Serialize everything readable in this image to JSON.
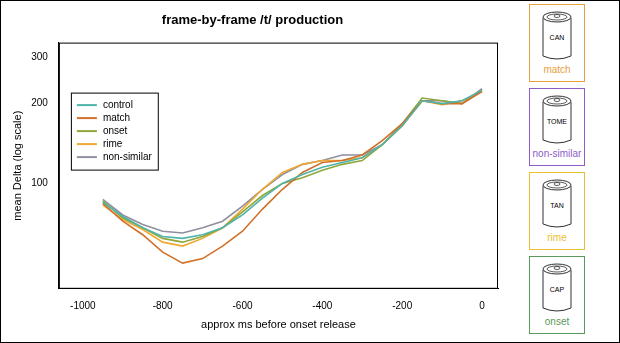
{
  "chart_data": {
    "type": "line",
    "title": "frame-by-frame /t/ production",
    "x_label": "approx ms before onset release",
    "y_label": "mean Delta (log scale)",
    "x": [
      -950,
      -900,
      -850,
      -800,
      -750,
      -700,
      -650,
      -600,
      -550,
      -500,
      -450,
      -400,
      -350,
      -300,
      -250,
      -200,
      -150,
      -100,
      -50,
      0
    ],
    "series": [
      {
        "name": "control",
        "color": "#4fb3aa",
        "values": [
          85,
          75,
          68,
          63,
          62,
          64,
          68,
          76,
          88,
          100,
          108,
          115,
          120,
          125,
          140,
          165,
          205,
          200,
          205,
          225
        ]
      },
      {
        "name": "match",
        "color": "#d0702a",
        "values": [
          84,
          72,
          64,
          55,
          50,
          52,
          58,
          66,
          80,
          95,
          110,
          120,
          122,
          128,
          145,
          168,
          205,
          200,
          200,
          222
        ]
      },
      {
        "name": "onset",
        "color": "#8fa73a",
        "values": [
          86,
          74,
          68,
          62,
          60,
          63,
          68,
          78,
          90,
          100,
          105,
          112,
          118,
          122,
          140,
          168,
          210,
          205,
          200,
          225
        ]
      },
      {
        "name": "rime",
        "color": "#f0a830",
        "values": [
          83,
          73,
          67,
          60,
          58,
          62,
          68,
          80,
          95,
          110,
          118,
          122,
          122,
          125,
          140,
          165,
          205,
          198,
          205,
          222
        ]
      },
      {
        "name": "non-similar",
        "color": "#8f8f9f",
        "values": [
          87,
          76,
          70,
          66,
          65,
          68,
          72,
          82,
          95,
          108,
          118,
          122,
          128,
          128,
          140,
          165,
          205,
          205,
          200,
          228
        ]
      }
    ],
    "xlim": [
      -1060,
      40
    ],
    "xticks": [
      -1000,
      -800,
      -600,
      -400,
      -200,
      0
    ],
    "ylim": [
      40,
      340
    ],
    "yticks": [
      100,
      200,
      300
    ],
    "log": "y",
    "grid": false,
    "legend": "upper left"
  },
  "side_panels": [
    {
      "word": "CAN",
      "label": "match",
      "color": "#e8a03c"
    },
    {
      "word": "TOME",
      "label": "non-similar",
      "color": "#8e5cc8"
    },
    {
      "word": "TAN",
      "label": "rime",
      "color": "#e8c030"
    },
    {
      "word": "CAP",
      "label": "onset",
      "color": "#5a9a5a"
    }
  ]
}
